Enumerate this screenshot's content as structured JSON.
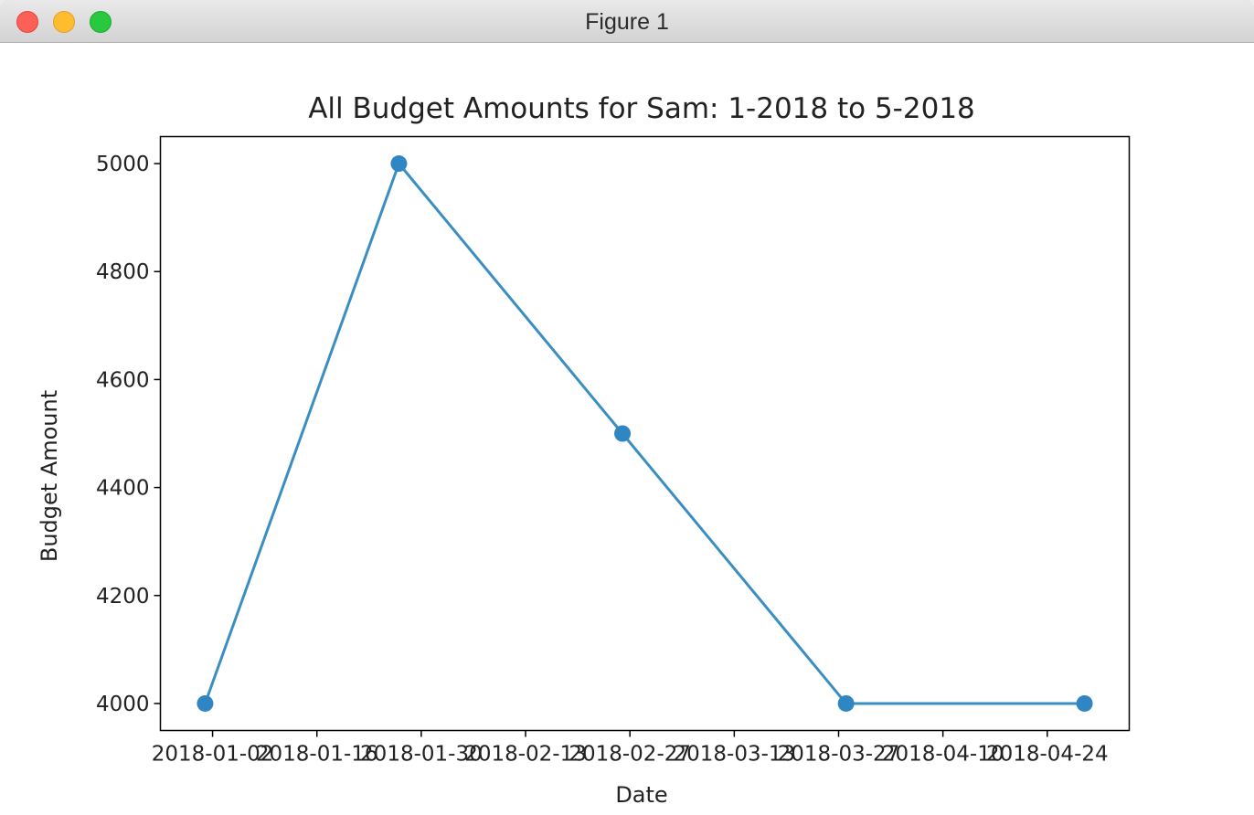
{
  "window": {
    "title": "Figure 1"
  },
  "colors": {
    "line": "#3b8ec2",
    "marker": "#2f86c3",
    "axes": "#000000",
    "text": "#222222"
  },
  "chart_data": {
    "type": "line",
    "title": "All Budget Amounts for Sam: 1-2018 to 5-2018",
    "xlabel": "Date",
    "ylabel": "Budget Amount",
    "x": [
      "2018-01-01",
      "2018-01-27",
      "2018-02-26",
      "2018-03-28",
      "2018-04-29"
    ],
    "series": [
      {
        "values": [
          4000,
          5000,
          4500,
          4000,
          4000
        ]
      }
    ],
    "x_ticks": [
      "2018-01-02",
      "2018-01-16",
      "2018-01-30",
      "2018-02-13",
      "2018-02-27",
      "2018-03-13",
      "2018-03-27",
      "2018-04-10",
      "2018-04-24"
    ],
    "xlim": [
      "2017-12-26",
      "2018-05-05"
    ],
    "y_ticks": [
      4000,
      4200,
      4400,
      4600,
      4800,
      5000
    ],
    "ylim": [
      3950,
      5050
    ],
    "grid": false,
    "marker": "circle"
  }
}
